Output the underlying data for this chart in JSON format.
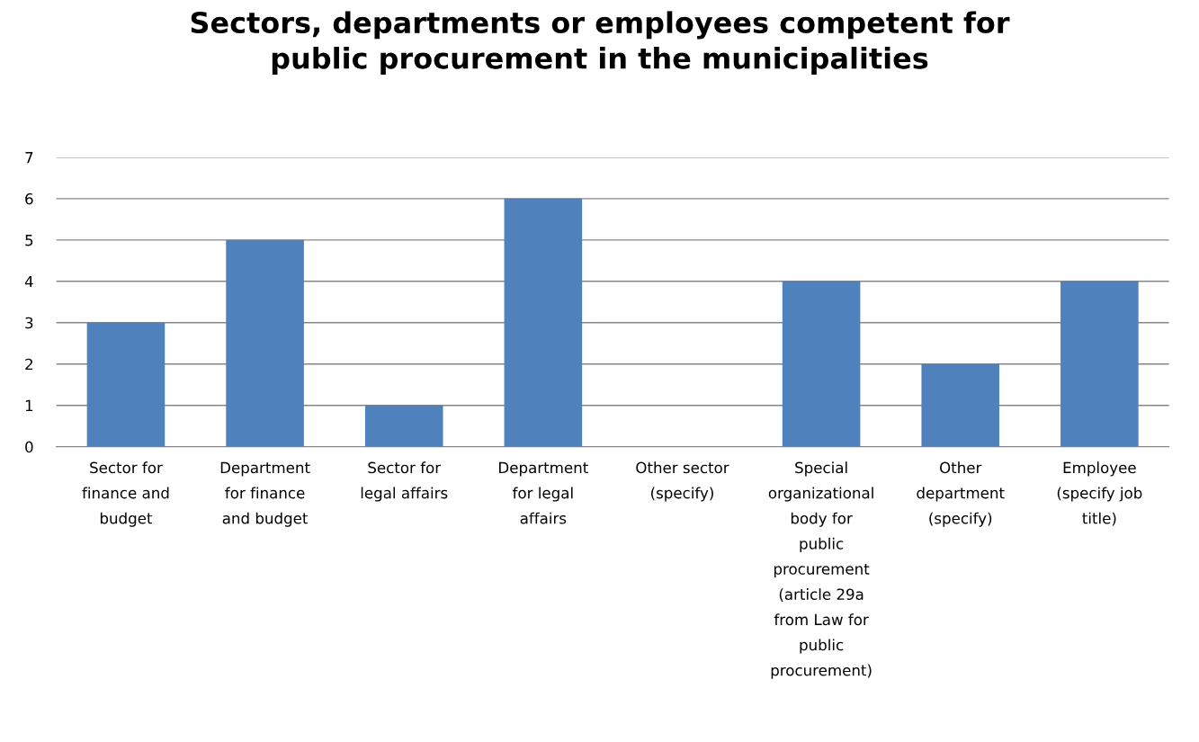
{
  "chart_data": {
    "type": "bar",
    "title": "Sectors, departments or employees competent for\npublic procurement in the municipalities",
    "categories": [
      "Sector for\nfinance and\nbudget",
      "Department\nfor finance\nand budget",
      "Sector for\nlegal affairs",
      "Department\nfor legal\naffairs",
      "Other sector\n(specify)",
      "Special\norganizational\nbody for\npublic\nprocurement\n(article 29a\nfrom Law for\npublic\nprocurement)",
      "Other\ndepartment\n(specify)",
      "Employee\n(specify job\ntitle)"
    ],
    "values": [
      3,
      5,
      1,
      6,
      0,
      4,
      2,
      4
    ],
    "color": "#4f81bd",
    "ylim": [
      0,
      7
    ],
    "yticks": [
      0,
      1,
      2,
      3,
      4,
      5,
      6,
      7
    ],
    "grid": "y",
    "legend": false
  }
}
